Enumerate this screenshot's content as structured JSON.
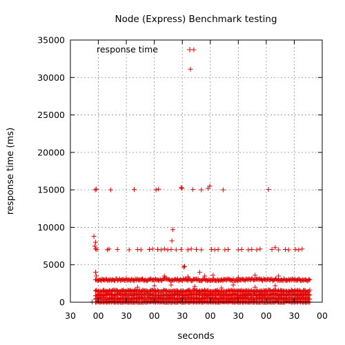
{
  "chart_data": {
    "type": "scatter",
    "title": "Node (Express) Benchmark testing",
    "xlabel": "seconds",
    "ylabel": "response time (ms)",
    "legend_position": "top-left",
    "grid": true,
    "marker": "+",
    "series_color": "#e00000",
    "x_ticks": [
      "30",
      "00",
      "30",
      "00",
      "30",
      "00",
      "30",
      "00",
      "30",
      "00"
    ],
    "ylim": [
      0,
      35000
    ],
    "y_ticks": [
      "0",
      "5000",
      "10000",
      "15000",
      "20000",
      "25000",
      "30000",
      "35000"
    ],
    "series": [
      {
        "name": "response time",
        "points": [
          [
            13,
            34
          ],
          [
            14,
            8800
          ],
          [
            15,
            8000
          ],
          [
            14.5,
            7500
          ],
          [
            15,
            7100
          ],
          [
            14.8,
            15000
          ],
          [
            15.5,
            15100
          ],
          [
            24,
            15000
          ],
          [
            38,
            15050
          ],
          [
            51,
            15000
          ],
          [
            52.5,
            15100
          ],
          [
            66,
            15300
          ],
          [
            66.5,
            15200
          ],
          [
            73,
            15050
          ],
          [
            78,
            15000
          ],
          [
            82,
            15200
          ],
          [
            83,
            15500
          ],
          [
            91,
            15000
          ],
          [
            118,
            15050
          ],
          [
            73.5,
            33700
          ],
          [
            71.5,
            31100
          ],
          [
            61,
            9700
          ],
          [
            60.5,
            8200
          ],
          [
            68,
            4800
          ],
          [
            67.5,
            4700
          ],
          [
            77,
            4000
          ],
          [
            80,
            3500
          ],
          [
            15,
            4000
          ],
          [
            15.5,
            3500
          ],
          [
            15.8,
            7050
          ],
          [
            22,
            7000
          ],
          [
            23,
            7100
          ],
          [
            28,
            7050
          ],
          [
            35,
            7000
          ],
          [
            40,
            7050
          ],
          [
            42,
            7000
          ],
          [
            47,
            7050
          ],
          [
            49,
            7100
          ],
          [
            52,
            7050
          ],
          [
            54,
            7000
          ],
          [
            56,
            7100
          ],
          [
            58,
            7000
          ],
          [
            60,
            7050
          ],
          [
            63,
            7000
          ],
          [
            66,
            7050
          ],
          [
            70,
            7000
          ],
          [
            72,
            7100
          ],
          [
            75,
            7050
          ],
          [
            78,
            7000
          ],
          [
            84,
            7050
          ],
          [
            86,
            7000
          ],
          [
            88,
            7050
          ],
          [
            92,
            7000
          ],
          [
            94,
            7050
          ],
          [
            100,
            7000
          ],
          [
            102,
            7050
          ],
          [
            106,
            7000
          ],
          [
            108,
            7050
          ],
          [
            111,
            7000
          ],
          [
            113,
            7100
          ],
          [
            120,
            7050
          ],
          [
            122,
            7300
          ],
          [
            124,
            7000
          ],
          [
            128,
            7050
          ],
          [
            130,
            7000
          ],
          [
            134,
            7050
          ],
          [
            136,
            7000
          ],
          [
            138,
            7100
          ],
          [
            43,
            3100
          ],
          [
            56,
            3500
          ],
          [
            70,
            3400
          ],
          [
            85,
            3600
          ],
          [
            100,
            3300
          ],
          [
            110,
            3600
          ],
          [
            124,
            3500
          ],
          [
            50,
            2200
          ],
          [
            74,
            2100
          ],
          [
            97,
            2300
          ],
          [
            122,
            2200
          ],
          [
            110,
            2000
          ],
          [
            40,
            2000
          ],
          [
            90,
            1900
          ],
          [
            60,
            2300
          ]
        ]
      }
    ],
    "dense_bands": [
      {
        "y": 3000,
        "x_from": 15,
        "x_to": 143,
        "note": "continuous band"
      },
      {
        "y": 1500,
        "x_from": 15,
        "x_to": 143,
        "note": "continuous band"
      },
      {
        "y": 1000,
        "x_from": 15,
        "x_to": 143,
        "note": "continuous band"
      },
      {
        "y": 500,
        "x_from": 15,
        "x_to": 143,
        "note": "continuous band"
      },
      {
        "y": 0,
        "x_from": 15,
        "x_to": 143,
        "note": "continuous band"
      }
    ]
  }
}
